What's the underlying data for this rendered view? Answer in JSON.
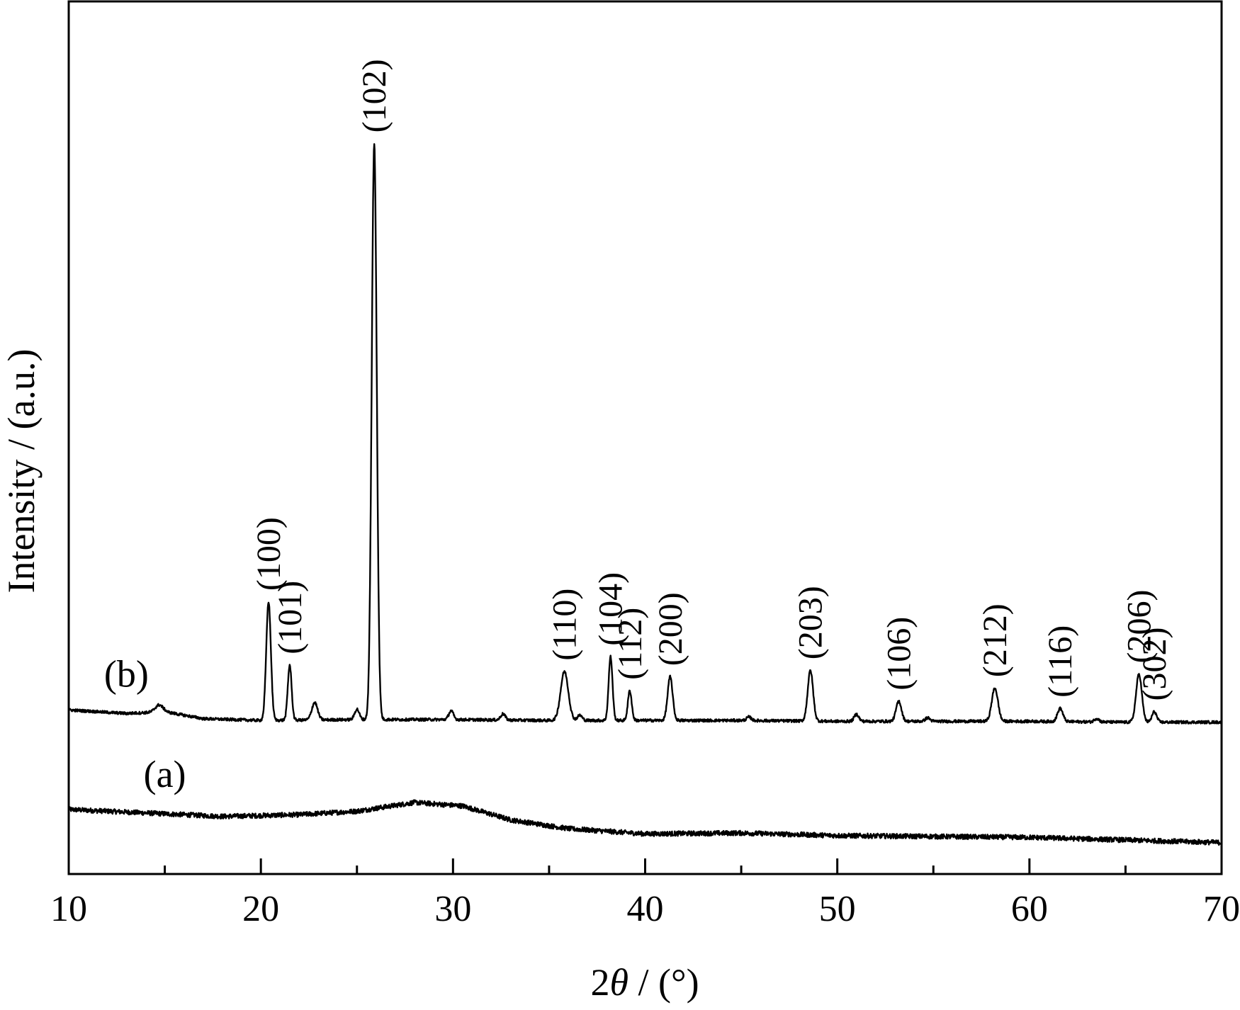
{
  "chart_data": {
    "type": "line",
    "title": "",
    "xlabel": "2θ / (°)",
    "xlabel_parts": {
      "prefix": "2",
      "symbol": "θ",
      "suffix": " / (°)"
    },
    "ylabel": "Intensity / (a.u.)",
    "xlim": [
      10,
      70
    ],
    "ylim": [
      0,
      1
    ],
    "y_ticks_shown": false,
    "grid": false,
    "legend": "none",
    "x_ticks": [
      10,
      20,
      30,
      40,
      50,
      60,
      70
    ],
    "x_tick_labels": [
      "10",
      "20",
      "30",
      "40",
      "50",
      "60",
      "70"
    ],
    "x_minor_ticks": [
      15,
      25,
      35,
      45,
      55,
      65
    ],
    "series": [
      {
        "name": "(a)",
        "label_at": 15.0,
        "baseline_points": [
          [
            10,
            0.074
          ],
          [
            14,
            0.07
          ],
          [
            18,
            0.066
          ],
          [
            22,
            0.068
          ],
          [
            25,
            0.072
          ],
          [
            28,
            0.082
          ],
          [
            30.5,
            0.078
          ],
          [
            33,
            0.062
          ],
          [
            36,
            0.052
          ],
          [
            40,
            0.046
          ],
          [
            45,
            0.047
          ],
          [
            50,
            0.044
          ],
          [
            55,
            0.043
          ],
          [
            60,
            0.042
          ],
          [
            65,
            0.039
          ],
          [
            70,
            0.036
          ]
        ],
        "peaks": []
      },
      {
        "name": "(b)",
        "label_at": 13.0,
        "baseline_points": [
          [
            10,
            0.188
          ],
          [
            13,
            0.184
          ],
          [
            15,
            0.186
          ],
          [
            17,
            0.178
          ],
          [
            20,
            0.176
          ],
          [
            25,
            0.177
          ],
          [
            30,
            0.177
          ],
          [
            35,
            0.176
          ],
          [
            40,
            0.176
          ],
          [
            45,
            0.176
          ],
          [
            50,
            0.175
          ],
          [
            55,
            0.175
          ],
          [
            60,
            0.175
          ],
          [
            65,
            0.174
          ],
          [
            70,
            0.174
          ]
        ],
        "peaks": [
          {
            "x": 14.7,
            "height": 0.008,
            "width": 0.2,
            "label": ""
          },
          {
            "x": 20.4,
            "height": 0.136,
            "width": 0.12,
            "label": "(100)"
          },
          {
            "x": 21.5,
            "height": 0.063,
            "width": 0.1,
            "label": "(101)"
          },
          {
            "x": 22.8,
            "height": 0.02,
            "width": 0.15,
            "label": ""
          },
          {
            "x": 25.0,
            "height": 0.012,
            "width": 0.12,
            "label": ""
          },
          {
            "x": 25.9,
            "height": 0.66,
            "width": 0.13,
            "label": "(102)"
          },
          {
            "x": 29.9,
            "height": 0.01,
            "width": 0.12,
            "label": ""
          },
          {
            "x": 32.6,
            "height": 0.007,
            "width": 0.12,
            "label": ""
          },
          {
            "x": 35.8,
            "height": 0.056,
            "width": 0.2,
            "label": "(110)"
          },
          {
            "x": 36.6,
            "height": 0.006,
            "width": 0.12,
            "label": ""
          },
          {
            "x": 38.2,
            "height": 0.073,
            "width": 0.1,
            "label": "(104)"
          },
          {
            "x": 39.2,
            "height": 0.034,
            "width": 0.1,
            "label": "(112)"
          },
          {
            "x": 41.3,
            "height": 0.05,
            "width": 0.13,
            "label": "(200)"
          },
          {
            "x": 45.4,
            "height": 0.004,
            "width": 0.12,
            "label": ""
          },
          {
            "x": 48.6,
            "height": 0.058,
            "width": 0.14,
            "label": "(203)"
          },
          {
            "x": 51.0,
            "height": 0.008,
            "width": 0.12,
            "label": ""
          },
          {
            "x": 53.2,
            "height": 0.023,
            "width": 0.14,
            "label": "(106)"
          },
          {
            "x": 54.7,
            "height": 0.004,
            "width": 0.12,
            "label": ""
          },
          {
            "x": 58.2,
            "height": 0.038,
            "width": 0.16,
            "label": "(212)"
          },
          {
            "x": 61.6,
            "height": 0.015,
            "width": 0.14,
            "label": "(116)"
          },
          {
            "x": 63.5,
            "height": 0.004,
            "width": 0.12,
            "label": ""
          },
          {
            "x": 65.7,
            "height": 0.055,
            "width": 0.15,
            "label": "(206)"
          },
          {
            "x": 66.5,
            "height": 0.012,
            "width": 0.12,
            "label": "(302)"
          }
        ]
      }
    ]
  }
}
